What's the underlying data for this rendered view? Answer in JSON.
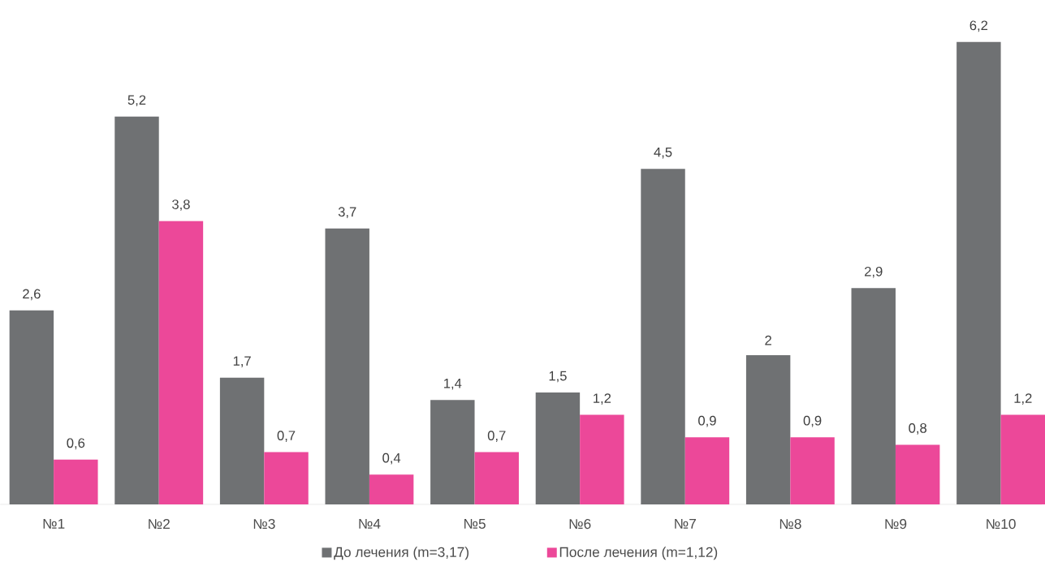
{
  "chart_data": {
    "type": "bar",
    "categories": [
      "№1",
      "№2",
      "№3",
      "№4",
      "№5",
      "№6",
      "№7",
      "№8",
      "№9",
      "№10"
    ],
    "series": [
      {
        "name": "До лечения (m=3,17)",
        "color": "#6f7173",
        "values": [
          2.6,
          5.2,
          1.7,
          3.7,
          1.4,
          1.5,
          4.5,
          2,
          2.9,
          6.2
        ],
        "value_labels": [
          "2,6",
          "5,2",
          "1,7",
          "3,7",
          "1,4",
          "1,5",
          "4,5",
          "2",
          "2,9",
          "6,2"
        ]
      },
      {
        "name": "После лечения (m=1,12)",
        "color": "#ec4899",
        "values": [
          0.6,
          3.8,
          0.7,
          0.4,
          0.7,
          1.2,
          0.9,
          0.9,
          0.8,
          1.2
        ],
        "value_labels": [
          "0,6",
          "3,8",
          "0,7",
          "0,4",
          "0,7",
          "1,2",
          "0,9",
          "0,9",
          "0,8",
          "1,2"
        ]
      }
    ],
    "legend": "bottom"
  }
}
